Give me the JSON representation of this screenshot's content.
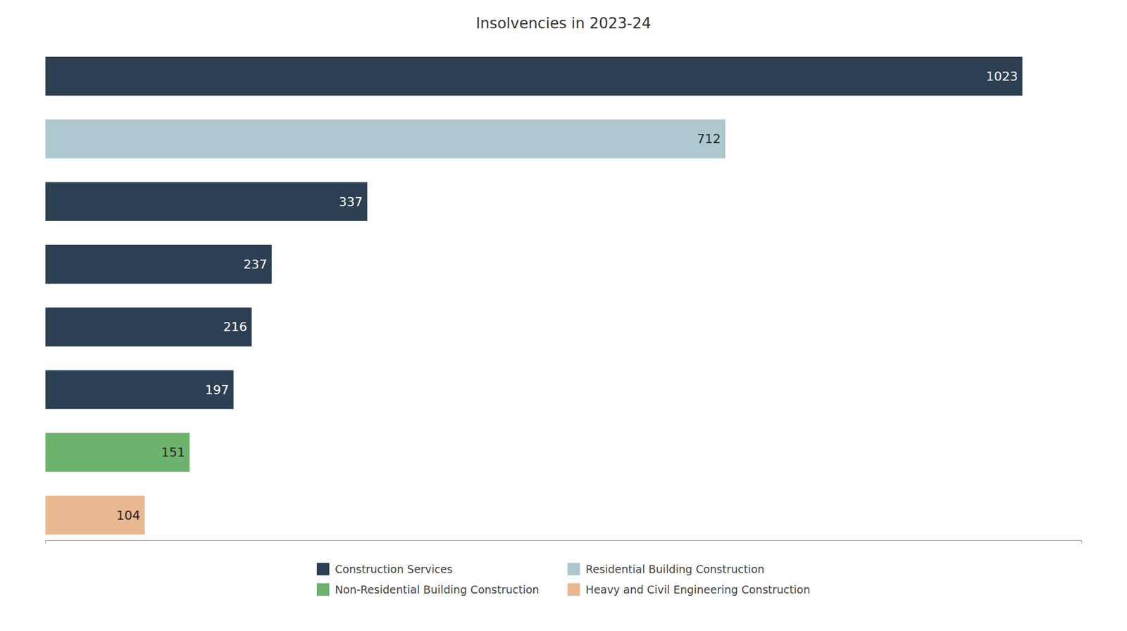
{
  "chart_data": {
    "type": "bar",
    "orientation": "horizontal",
    "stacked": true,
    "title": "Insolvencies in 2023-24",
    "categories": [
      null,
      null,
      null,
      null,
      null,
      null,
      null,
      null
    ],
    "series": [
      {
        "name": "Construction Services",
        "color": "#2d3f52",
        "values": [
          1023,
          null,
          337,
          237,
          216,
          197,
          null,
          null
        ]
      },
      {
        "name": "Residential Building Construction",
        "color": "#adc8cf",
        "values": [
          null,
          712,
          null,
          null,
          null,
          null,
          null,
          null
        ]
      },
      {
        "name": "Non-Residential Building Construction",
        "color": "#6db36d",
        "values": [
          null,
          null,
          null,
          null,
          null,
          null,
          151,
          null
        ]
      },
      {
        "name": "Heavy and Civil Engineering Construction",
        "color": "#e8b990",
        "values": [
          null,
          null,
          null,
          null,
          null,
          null,
          null,
          104
        ]
      }
    ],
    "xlim": [
      0,
      1085
    ],
    "tick_labels": false,
    "data_labels": true,
    "legend": "bottom"
  }
}
